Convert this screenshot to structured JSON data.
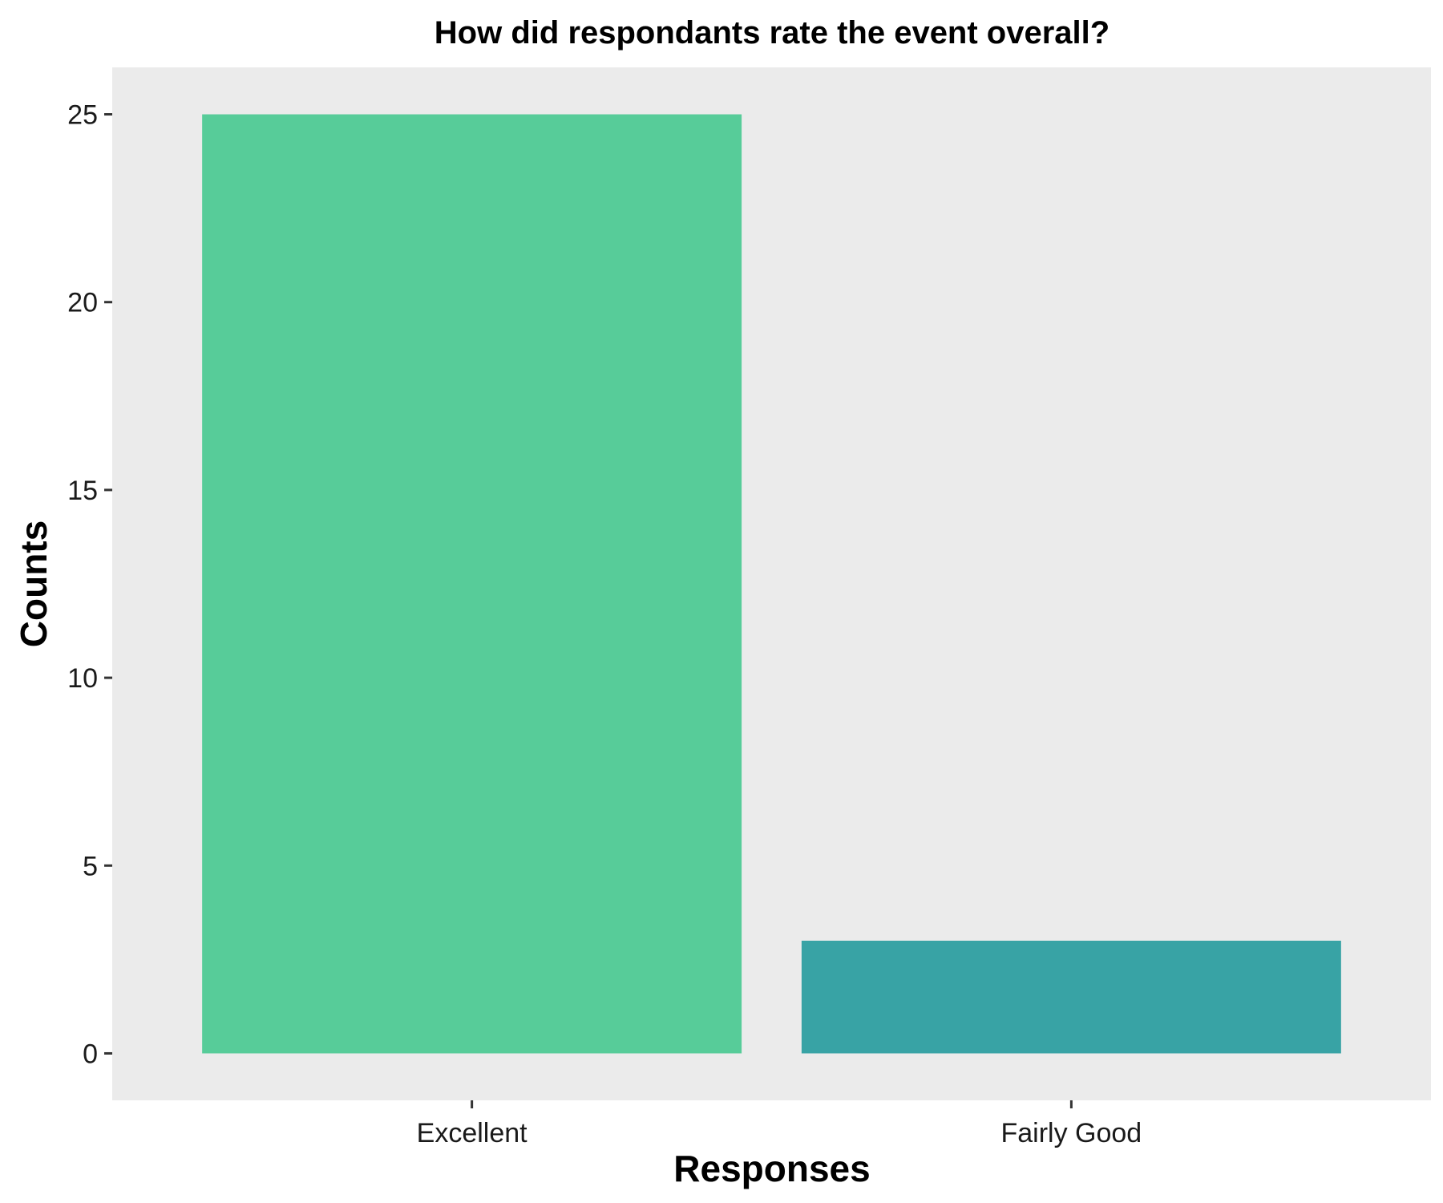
{
  "chart_data": {
    "type": "bar",
    "title": "How did respondants rate the event overall?",
    "xlabel": "Responses",
    "ylabel": "Counts",
    "categories": [
      "Excellent",
      "Fairly Good"
    ],
    "values": [
      25,
      3
    ],
    "bar_colors": [
      "#57CC99",
      "#38A3A5"
    ],
    "ylim": [
      -1.25,
      26.25
    ],
    "yticks": [
      0,
      5,
      10,
      15,
      20,
      25
    ],
    "grid": false,
    "legend": "none",
    "panel_background": "#EBEBEB"
  }
}
